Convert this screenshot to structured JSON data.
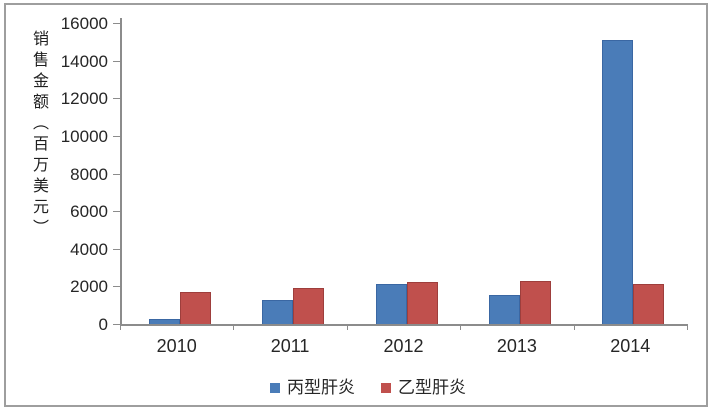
{
  "chart_data": {
    "type": "bar",
    "title": "",
    "ylabel": "销售金额（百万美元）",
    "xlabel": "",
    "categories": [
      "2010",
      "2011",
      "2012",
      "2013",
      "2014"
    ],
    "series": [
      {
        "name": "丙型肝炎",
        "color": "#4A7CB8",
        "border_color": "#3A67A3",
        "values": [
          250,
          1250,
          2100,
          1550,
          15100
        ]
      },
      {
        "name": "乙型肝炎",
        "color": "#C0504D",
        "border_color": "#9E3E3C",
        "values": [
          1700,
          1900,
          2250,
          2300,
          2150
        ]
      }
    ],
    "ylim": [
      0,
      16000
    ],
    "ytick_step": 2000,
    "ytick_labels": [
      "0",
      "2000",
      "4000",
      "6000",
      "8000",
      "10000",
      "12000",
      "14000",
      "16000"
    ],
    "grid": false,
    "legend_position": "bottom",
    "axis_color": "#8C8C8C",
    "text_color": "#262626"
  },
  "frame": {
    "border_color": "#9E9E9E",
    "background": "#FFFFFF"
  }
}
